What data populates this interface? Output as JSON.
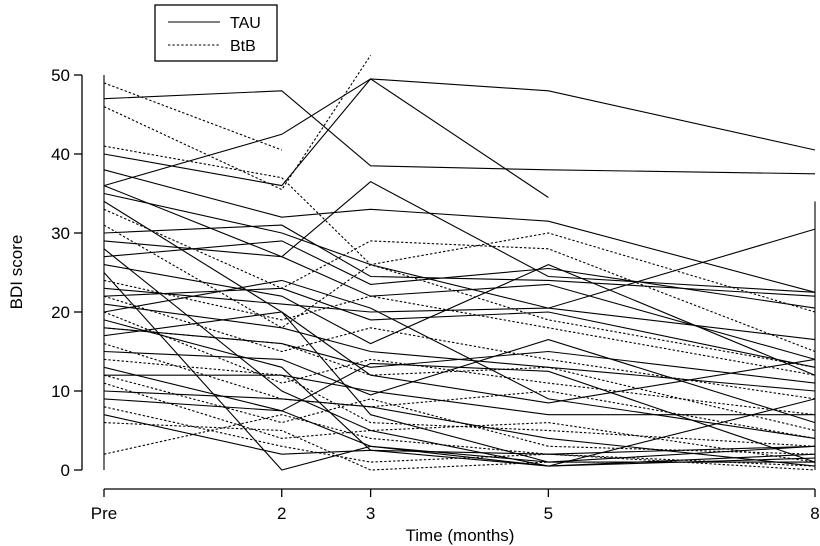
{
  "chart_data": {
    "type": "line",
    "xlabel": "Time (months)",
    "ylabel": "BDI score",
    "x_positions": [
      0,
      2,
      3,
      5,
      8
    ],
    "x_tick_labels": [
      "Pre",
      "2",
      "3",
      "5",
      "8"
    ],
    "yticks": [
      0,
      10,
      20,
      30,
      40,
      50
    ],
    "xlim": [
      0,
      8
    ],
    "ylim": [
      0,
      50
    ],
    "legend_position": "top-left",
    "series": [
      {
        "name": "TAU",
        "style": "solid",
        "color": "#000000"
      },
      {
        "name": "BtB",
        "style": "dotted",
        "color": "#000000"
      }
    ],
    "subjects": [
      {
        "group": "TAU",
        "y": [
          47,
          48,
          38.5,
          38,
          37.5
        ]
      },
      {
        "group": "TAU",
        "y": [
          36,
          42.5,
          49.5,
          48,
          40.5
        ]
      },
      {
        "group": "TAU",
        "y": [
          40,
          36,
          49.5,
          34.5,
          null
        ]
      },
      {
        "group": "TAU",
        "y": [
          36,
          27,
          36.5,
          24.5,
          22.5
        ]
      },
      {
        "group": "TAU",
        "y": [
          38,
          32,
          33,
          31.5,
          22.5
        ]
      },
      {
        "group": "TAU",
        "y": [
          35,
          30,
          26,
          20.5,
          30.5
        ]
      },
      {
        "group": "TAU",
        "y": [
          30,
          31,
          24.5,
          24,
          22
        ]
      },
      {
        "group": "TAU",
        "y": [
          29,
          27,
          22,
          23.5,
          14
        ]
      },
      {
        "group": "TAU",
        "y": [
          27,
          29,
          23.5,
          25.5,
          20.5
        ]
      },
      {
        "group": "TAU",
        "y": [
          26,
          22,
          16,
          26,
          12
        ]
      },
      {
        "group": "TAU",
        "y": [
          23,
          21,
          20,
          20.5,
          16.5
        ]
      },
      {
        "group": "TAU",
        "y": [
          22,
          23,
          19,
          20,
          13
        ]
      },
      {
        "group": "TAU",
        "y": [
          21,
          18,
          15,
          13,
          10
        ]
      },
      {
        "group": "TAU",
        "y": [
          20,
          24,
          20.5,
          9,
          4
        ]
      },
      {
        "group": "TAU",
        "y": [
          18,
          16,
          13,
          15,
          11
        ]
      },
      {
        "group": "TAU",
        "y": [
          17,
          20,
          12,
          8.5,
          14
        ]
      },
      {
        "group": "TAU",
        "y": [
          15,
          14,
          9.5,
          16.5,
          6
        ]
      },
      {
        "group": "TAU",
        "y": [
          13,
          7.5,
          13.5,
          12.5,
          1
        ]
      },
      {
        "group": "TAU",
        "y": [
          12,
          12,
          10,
          7,
          7
        ]
      },
      {
        "group": "TAU",
        "y": [
          10,
          9,
          8,
          4,
          0.5
        ]
      },
      {
        "group": "TAU",
        "y": [
          9,
          7.5,
          3,
          0.5,
          9
        ]
      },
      {
        "group": "TAU",
        "y": [
          7,
          2,
          2.5,
          2,
          3
        ]
      },
      {
        "group": "TAU",
        "y": [
          34,
          20,
          7,
          1,
          1
        ]
      },
      {
        "group": "TAU",
        "y": [
          25,
          0,
          3,
          1,
          3
        ]
      },
      {
        "group": "TAU",
        "y": [
          28,
          10,
          5,
          0.5,
          2
        ]
      },
      {
        "group": "TAU",
        "y": [
          19,
          13,
          2.5,
          0.5,
          1.5
        ]
      },
      {
        "group": "BtB",
        "y": [
          49,
          40.5,
          null,
          null,
          null
        ]
      },
      {
        "group": "BtB",
        "y": [
          46,
          35.5,
          52.5,
          null,
          null
        ]
      },
      {
        "group": "BtB",
        "y": [
          41,
          37,
          26,
          30,
          20
        ]
      },
      {
        "group": "BtB",
        "y": [
          33,
          23,
          29,
          28,
          15
        ]
      },
      {
        "group": "BtB",
        "y": [
          31,
          18,
          26,
          19,
          13
        ]
      },
      {
        "group": "BtB",
        "y": [
          24,
          19,
          22,
          18,
          12
        ]
      },
      {
        "group": "BtB",
        "y": [
          22,
          15,
          18,
          14,
          9
        ]
      },
      {
        "group": "BtB",
        "y": [
          20,
          11,
          14,
          11,
          7
        ]
      },
      {
        "group": "BtB",
        "y": [
          18,
          16,
          12,
          13,
          5
        ]
      },
      {
        "group": "BtB",
        "y": [
          16,
          9,
          8,
          10,
          4
        ]
      },
      {
        "group": "BtB",
        "y": [
          14,
          12,
          6,
          5,
          3
        ]
      },
      {
        "group": "BtB",
        "y": [
          12,
          6,
          9,
          3,
          2
        ]
      },
      {
        "group": "BtB",
        "y": [
          11,
          4,
          5,
          6,
          1
        ]
      },
      {
        "group": "BtB",
        "y": [
          8,
          3,
          1,
          2,
          0
        ]
      },
      {
        "group": "BtB",
        "y": [
          6,
          5,
          0,
          1,
          1
        ]
      },
      {
        "group": "BtB",
        "y": [
          2,
          7,
          4,
          2,
          0.5
        ]
      }
    ]
  }
}
